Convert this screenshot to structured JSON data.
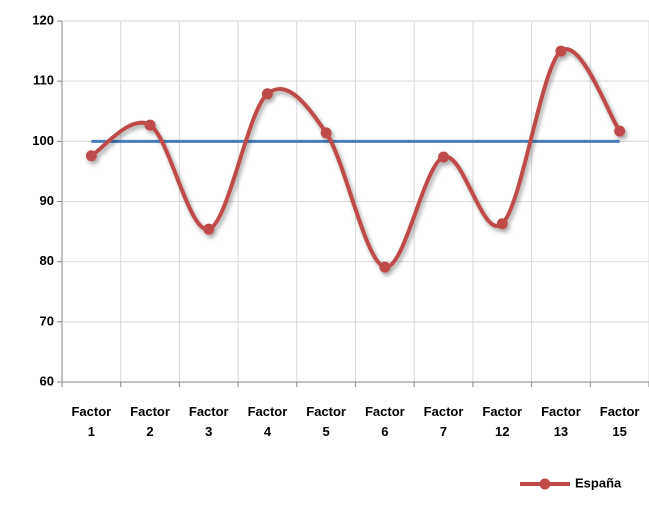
{
  "chart_data": {
    "type": "line",
    "categories": [
      "Factor 1",
      "Factor 2",
      "Factor 3",
      "Factor 4",
      "Factor 5",
      "Factor 6",
      "Factor 7",
      "Factor 12",
      "Factor 13",
      "Factor 15"
    ],
    "series": [
      {
        "color": "#4a7ebb",
        "values": [
          100,
          100,
          100,
          100,
          100,
          100,
          100,
          100,
          100,
          100
        ]
      },
      {
        "name": "España",
        "color": "#be4b48",
        "values": [
          97.6,
          102.7,
          85.4,
          107.9,
          101.4,
          79.1,
          97.4,
          86.3,
          115.0,
          101.7
        ],
        "smooth": true,
        "markers": true
      }
    ],
    "ylim": [
      60,
      120
    ],
    "yticks": [
      60,
      70,
      80,
      90,
      100,
      110,
      120
    ],
    "grid": true,
    "legend": "bottom-right"
  }
}
